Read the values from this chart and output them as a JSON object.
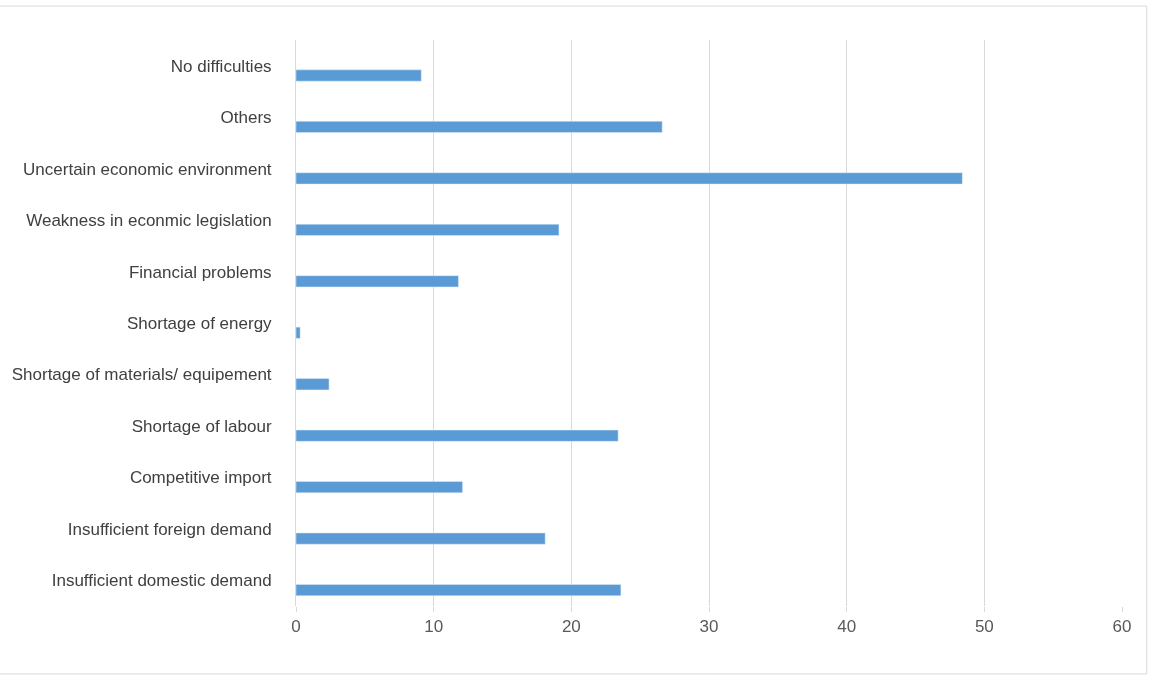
{
  "chart_data": {
    "type": "bar",
    "orientation": "horizontal",
    "categories": [
      "No difficulties",
      "Others",
      "Uncertain economic environment",
      "Weakness in econmic legislation",
      "Financial problems",
      "Shortage of energy",
      "Shortage of materials/ equipement",
      "Shortage of labour",
      "Competitive import",
      "Insufficient foreign demand",
      "Insufficient domestic demand"
    ],
    "values": [
      9.1,
      26.6,
      48.4,
      19.1,
      11.8,
      0.3,
      2.4,
      23.4,
      12.1,
      18.1,
      23.6
    ],
    "color": "#5b9bd5",
    "xlim": [
      0,
      60
    ],
    "xticks": [
      0,
      10,
      20,
      30,
      40,
      50,
      60
    ],
    "grid": "x"
  }
}
